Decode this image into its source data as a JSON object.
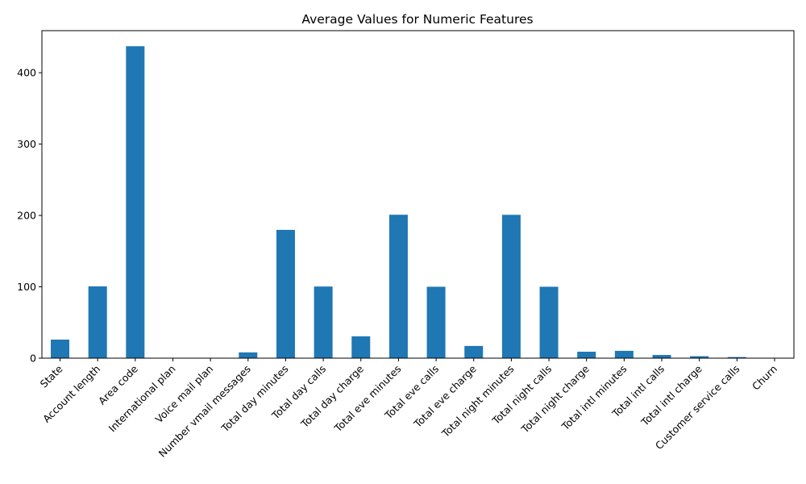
{
  "chart_data": {
    "type": "bar",
    "title": "Average Values for Numeric Features",
    "xlabel": "",
    "ylabel": "",
    "categories": [
      "State",
      "Account length",
      "Area code",
      "International plan",
      "Voice mail plan",
      "Number vmail messages",
      "Total day minutes",
      "Total day calls",
      "Total day charge",
      "Total eve minutes",
      "Total eve calls",
      "Total eve charge",
      "Total night minutes",
      "Total night calls",
      "Total night charge",
      "Total intl minutes",
      "Total intl calls",
      "Total intl charge",
      "Customer service calls",
      "Churn"
    ],
    "values": [
      26.0,
      100.6,
      437.2,
      0.1,
      0.28,
      8.1,
      179.8,
      100.4,
      30.6,
      201.0,
      100.1,
      17.1,
      200.9,
      100.1,
      9.04,
      10.24,
      4.48,
      2.76,
      1.56,
      0.14
    ],
    "ylim": [
      0,
      459
    ],
    "yticks": [
      0,
      100,
      200,
      300,
      400
    ],
    "grid": false,
    "bar_color": "#1f77b4"
  }
}
